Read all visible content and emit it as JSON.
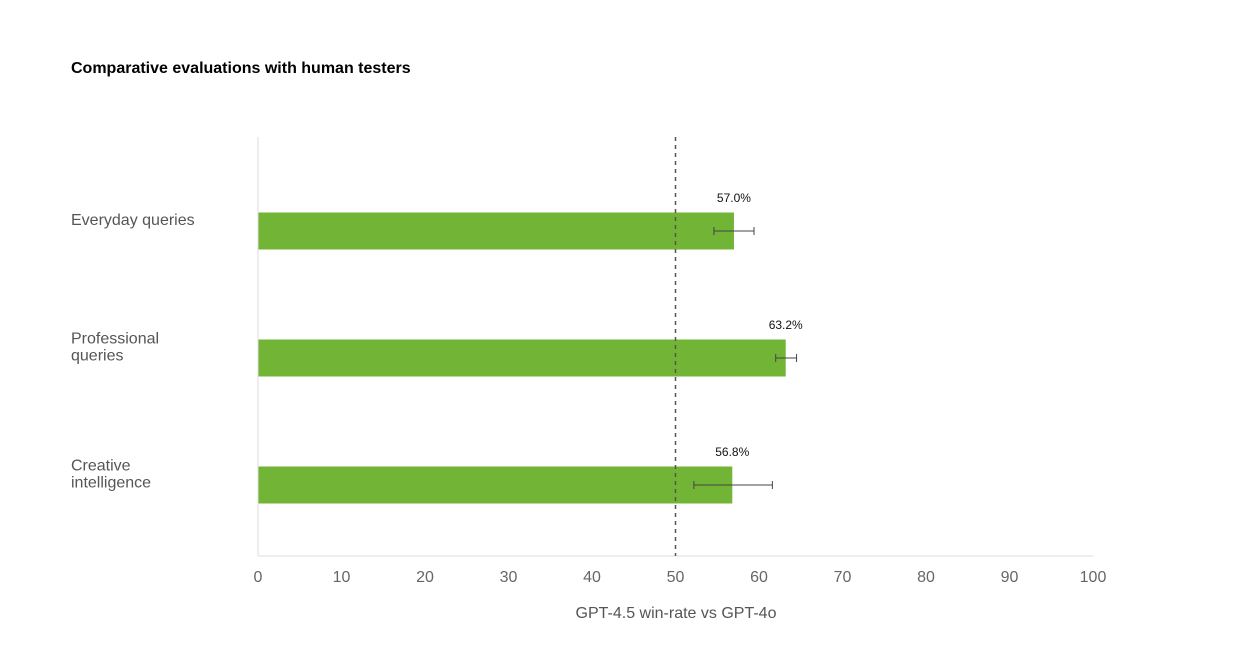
{
  "chart_data": {
    "type": "bar",
    "orientation": "horizontal",
    "title": "Comparative evaluations with human testers",
    "xlabel": "GPT-4.5 win-rate vs GPT-4o",
    "ylabel": "",
    "xlim": [
      0,
      100
    ],
    "xticks": [
      0,
      10,
      20,
      30,
      40,
      50,
      60,
      70,
      80,
      90,
      100
    ],
    "reference_line": 50,
    "grid": false,
    "categories": [
      [
        "Everyday queries"
      ],
      [
        "Professional",
        "queries"
      ],
      [
        "Creative",
        "intelligence"
      ]
    ],
    "values": [
      57.0,
      63.2,
      56.8
    ],
    "value_labels": [
      "57.0%",
      "63.2%",
      "56.8%"
    ],
    "error_low": [
      54.6,
      62.0,
      52.2
    ],
    "error_high": [
      59.4,
      64.5,
      61.6
    ],
    "bar_color": "#72b435"
  }
}
